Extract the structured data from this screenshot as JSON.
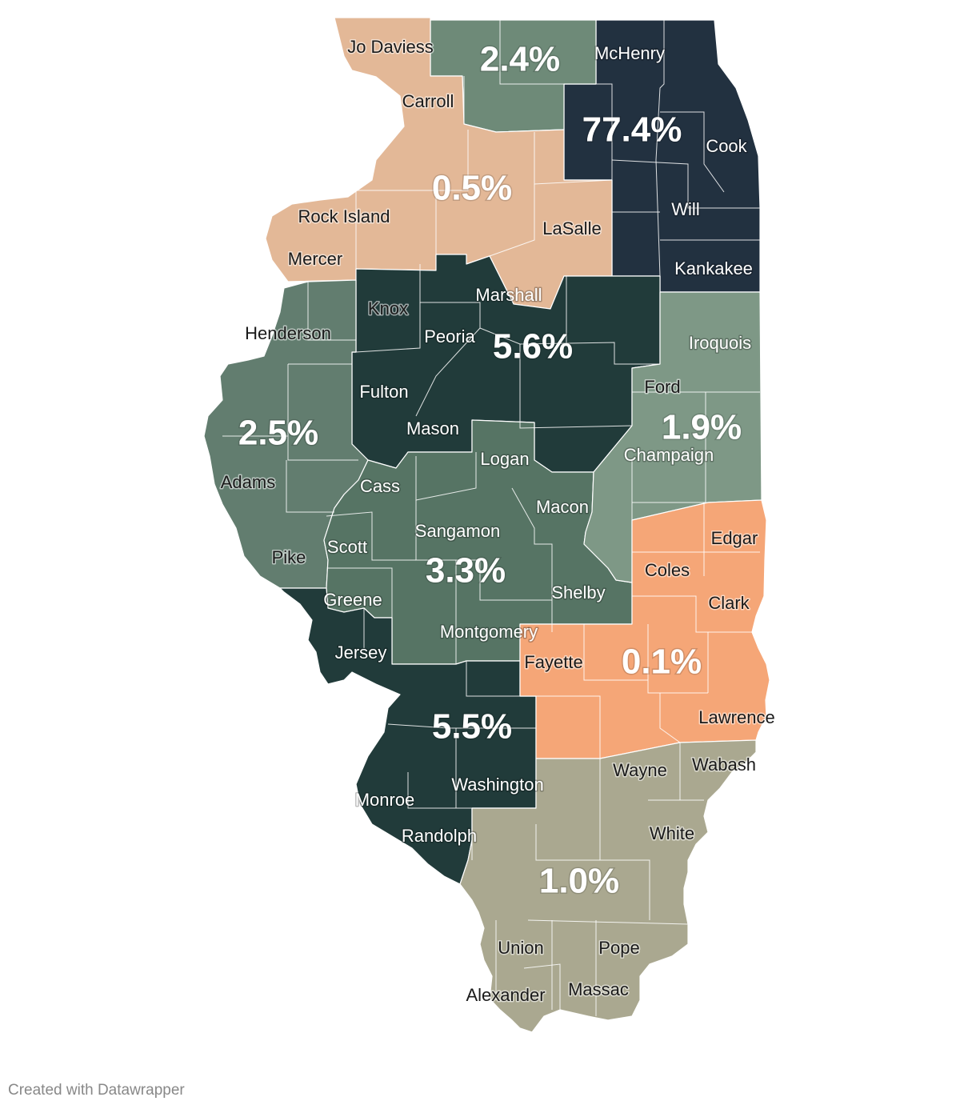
{
  "colors": {
    "northeast": "#223140",
    "northern": "#6e8a78",
    "northwest": "#e3b897",
    "central": "#213b3a",
    "west": "#627d6f",
    "west_central": "#567464",
    "southwest": "#213b3a",
    "east_central": "#7e9886",
    "southeast": "#f5a677",
    "south": "#aaa890"
  },
  "regions": [
    {
      "id": "northeast",
      "share": "77.4%"
    },
    {
      "id": "northern",
      "share": "2.4%"
    },
    {
      "id": "northwest",
      "share": "0.5%"
    },
    {
      "id": "central",
      "share": "5.6%"
    },
    {
      "id": "west",
      "share": "2.5%"
    },
    {
      "id": "west_central",
      "share": "3.3%"
    },
    {
      "id": "east_central",
      "share": "1.9%"
    },
    {
      "id": "southwest",
      "share": "5.5%"
    },
    {
      "id": "southeast",
      "share": "0.1%"
    },
    {
      "id": "south",
      "share": "1.0%"
    }
  ],
  "counties": [
    {
      "name": "Jo Daviess",
      "tone": "dark"
    },
    {
      "name": "McHenry",
      "tone": "light"
    },
    {
      "name": "Carroll",
      "tone": "dark"
    },
    {
      "name": "Cook",
      "tone": "light"
    },
    {
      "name": "Rock Island",
      "tone": "dark"
    },
    {
      "name": "LaSalle",
      "tone": "dark"
    },
    {
      "name": "Will",
      "tone": "light"
    },
    {
      "name": "Mercer",
      "tone": "dark"
    },
    {
      "name": "Kankakee",
      "tone": "light"
    },
    {
      "name": "Knox",
      "tone": "dark"
    },
    {
      "name": "Marshall",
      "tone": "light"
    },
    {
      "name": "Henderson",
      "tone": "dark"
    },
    {
      "name": "Peoria",
      "tone": "light"
    },
    {
      "name": "Iroquois",
      "tone": "light"
    },
    {
      "name": "Fulton",
      "tone": "light"
    },
    {
      "name": "Ford",
      "tone": "dark"
    },
    {
      "name": "Mason",
      "tone": "light"
    },
    {
      "name": "Champaign",
      "tone": "light"
    },
    {
      "name": "Logan",
      "tone": "light"
    },
    {
      "name": "Adams",
      "tone": "dark"
    },
    {
      "name": "Cass",
      "tone": "light"
    },
    {
      "name": "Macon",
      "tone": "light"
    },
    {
      "name": "Sangamon",
      "tone": "light"
    },
    {
      "name": "Edgar",
      "tone": "dark"
    },
    {
      "name": "Scott",
      "tone": "light"
    },
    {
      "name": "Pike",
      "tone": "dark"
    },
    {
      "name": "Coles",
      "tone": "dark"
    },
    {
      "name": "Shelby",
      "tone": "light"
    },
    {
      "name": "Greene",
      "tone": "light"
    },
    {
      "name": "Clark",
      "tone": "dark"
    },
    {
      "name": "Montgomery",
      "tone": "light"
    },
    {
      "name": "Jersey",
      "tone": "light"
    },
    {
      "name": "Fayette",
      "tone": "dark"
    },
    {
      "name": "Lawrence",
      "tone": "dark"
    },
    {
      "name": "Wayne",
      "tone": "dark"
    },
    {
      "name": "Wabash",
      "tone": "dark"
    },
    {
      "name": "Washington",
      "tone": "light"
    },
    {
      "name": "Monroe",
      "tone": "light"
    },
    {
      "name": "White",
      "tone": "dark"
    },
    {
      "name": "Randolph",
      "tone": "light"
    },
    {
      "name": "Union",
      "tone": "dark"
    },
    {
      "name": "Pope",
      "tone": "dark"
    },
    {
      "name": "Alexander",
      "tone": "dark"
    },
    {
      "name": "Massac",
      "tone": "dark"
    }
  ],
  "credit": "Created with Datawrapper"
}
